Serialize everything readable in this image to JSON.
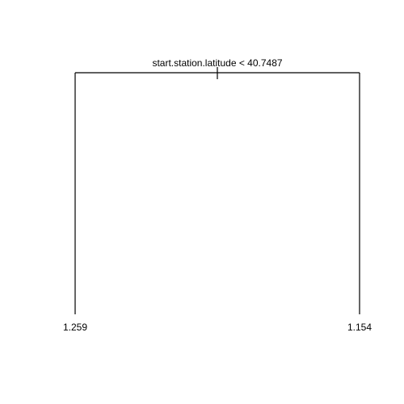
{
  "tree": {
    "root": {
      "split_label": "start.station.latitude < 40.7487"
    },
    "leaves": [
      {
        "value": "1.259"
      },
      {
        "value": "1.154"
      }
    ],
    "colors": {
      "line": "#000000",
      "text": "#000000",
      "background": "#ffffff"
    }
  }
}
